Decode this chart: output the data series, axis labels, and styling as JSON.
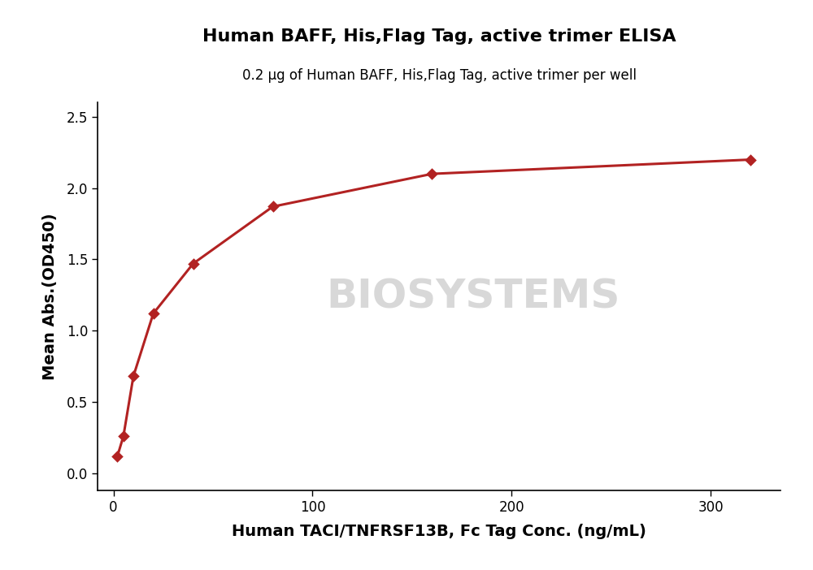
{
  "title": "Human BAFF, His,Flag Tag, active trimer ELISA",
  "subtitle": "0.2 μg of Human BAFF, His,Flag Tag, active trimer per well",
  "xlabel": "Human TACI/TNFRSF13B, Fc Tag Conc. (ng/mL)",
  "ylabel": "Mean Abs.(OD450)",
  "x_data": [
    2.0,
    5.0,
    10.0,
    20.0,
    40.0,
    80.0,
    160.0,
    320.0
  ],
  "y_data": [
    0.12,
    0.26,
    0.68,
    1.12,
    1.47,
    1.87,
    2.1,
    2.2
  ],
  "xlim": [
    -8,
    335
  ],
  "ylim": [
    -0.12,
    2.6
  ],
  "yticks": [
    0.0,
    0.5,
    1.0,
    1.5,
    2.0,
    2.5
  ],
  "xticks": [
    0,
    100,
    200,
    300
  ],
  "line_color": "#b22222",
  "marker_color": "#b22222",
  "bg_color": "#ffffff",
  "title_fontsize": 16,
  "subtitle_fontsize": 12,
  "axis_label_fontsize": 14,
  "tick_fontsize": 12,
  "watermark_text": "BIOSYSTEMS",
  "watermark_color": "#d8d8d8",
  "watermark_fontsize": 36
}
